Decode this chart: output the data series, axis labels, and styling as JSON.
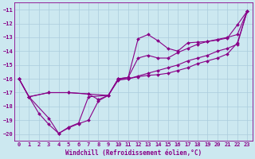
{
  "xlabel": "Windchill (Refroidissement éolien,°C)",
  "xlim": [
    -0.5,
    23.5
  ],
  "ylim": [
    -20.5,
    -10.5
  ],
  "yticks": [
    -20,
    -19,
    -18,
    -17,
    -16,
    -15,
    -14,
    -13,
    -12,
    -11
  ],
  "xticks": [
    0,
    1,
    2,
    3,
    4,
    5,
    6,
    7,
    8,
    9,
    10,
    11,
    12,
    13,
    14,
    15,
    16,
    17,
    18,
    19,
    20,
    21,
    22,
    23
  ],
  "bg_color": "#cce8f0",
  "grid_color": "#aaccdd",
  "line_color": "#880088",
  "line1_x": [
    0,
    1,
    2,
    3,
    4,
    5,
    6,
    7,
    8,
    9,
    10,
    11,
    12,
    13,
    14,
    15,
    16,
    17,
    18,
    19,
    20,
    21,
    22,
    23
  ],
  "line1_y": [
    -16.0,
    -17.3,
    -18.5,
    -19.3,
    -19.95,
    -19.55,
    -19.25,
    -19.0,
    -17.6,
    -17.2,
    -16.0,
    -15.9,
    -13.1,
    -12.8,
    -13.25,
    -13.8,
    -14.0,
    -13.4,
    -13.35,
    -13.3,
    -13.2,
    -13.05,
    -12.1,
    -11.1
  ],
  "line2_x": [
    0,
    1,
    3,
    4,
    5,
    6,
    7,
    9,
    10,
    11,
    12,
    13,
    14,
    15,
    16,
    17,
    18,
    19,
    20,
    21,
    22,
    23
  ],
  "line2_y": [
    -16.0,
    -17.3,
    -18.85,
    -19.95,
    -19.5,
    -19.2,
    -17.3,
    -17.2,
    -16.0,
    -16.0,
    -15.85,
    -15.75,
    -15.7,
    -15.6,
    -15.4,
    -15.2,
    -14.9,
    -14.7,
    -14.5,
    -14.2,
    -13.4,
    -11.1
  ],
  "line3_x": [
    0,
    1,
    3,
    5,
    7,
    8,
    9,
    10,
    11,
    12,
    13,
    14,
    15,
    16,
    17,
    18,
    19,
    20,
    21,
    22,
    23
  ],
  "line3_y": [
    -16.0,
    -17.3,
    -17.0,
    -17.0,
    -17.1,
    -17.5,
    -17.2,
    -16.0,
    -15.9,
    -14.5,
    -14.3,
    -14.5,
    -14.5,
    -14.1,
    -13.8,
    -13.5,
    -13.3,
    -13.15,
    -13.0,
    -12.8,
    -11.1
  ],
  "line4_x": [
    0,
    1,
    3,
    5,
    7,
    9,
    10,
    11,
    12,
    13,
    14,
    15,
    16,
    17,
    18,
    19,
    20,
    21,
    22,
    23
  ],
  "line4_y": [
    -16.0,
    -17.3,
    -17.0,
    -17.0,
    -17.1,
    -17.2,
    -16.1,
    -16.0,
    -15.8,
    -15.6,
    -15.4,
    -15.2,
    -15.0,
    -14.7,
    -14.5,
    -14.3,
    -14.0,
    -13.8,
    -13.5,
    -11.1
  ]
}
